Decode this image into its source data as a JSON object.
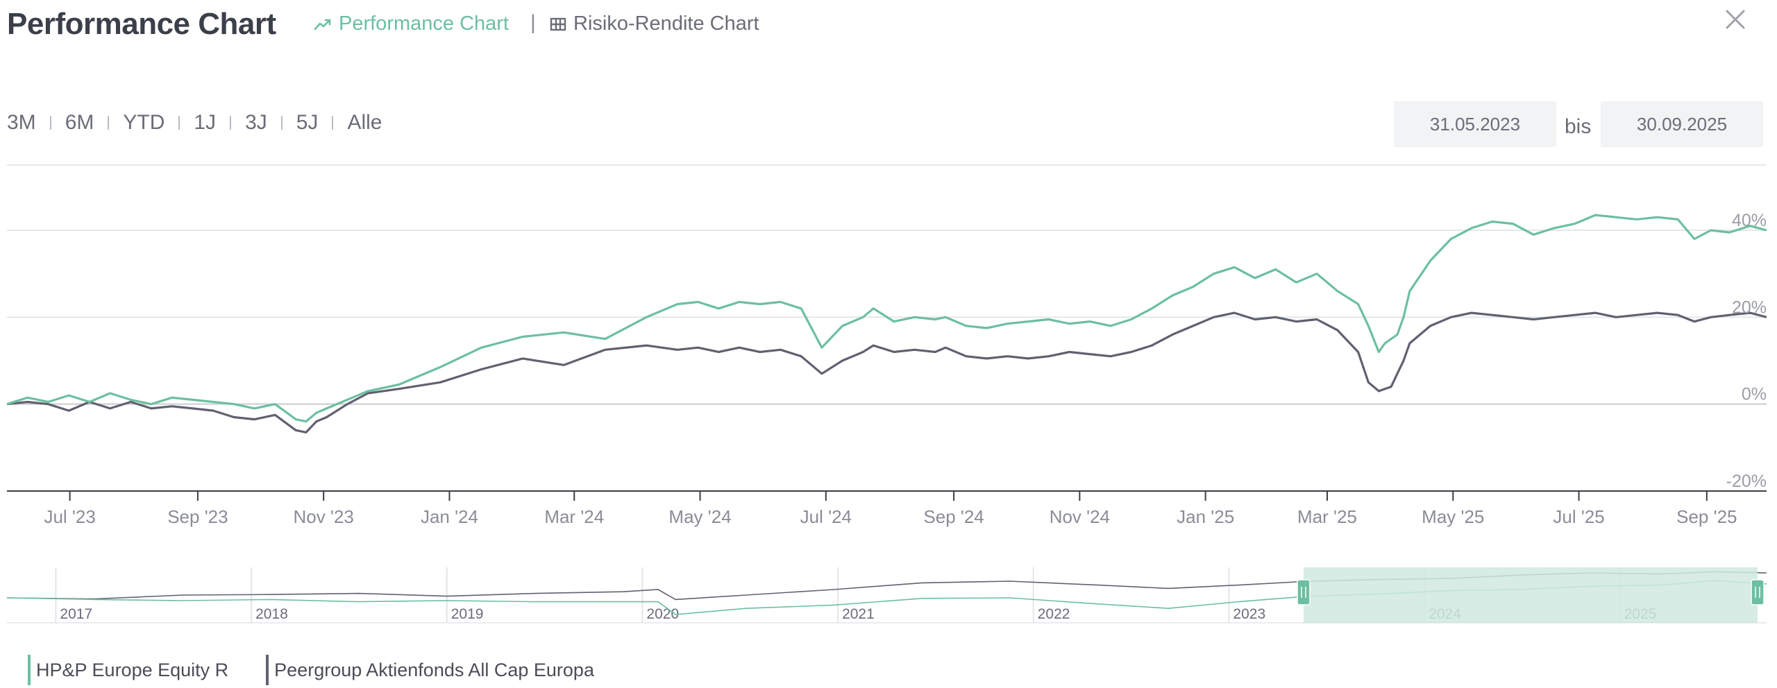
{
  "header": {
    "title": "Performance Chart",
    "tab_performance": "Performance Chart",
    "tab_separator": "|",
    "tab_risk": "Risiko-Rendite Chart"
  },
  "ranges": [
    "3M",
    "6M",
    "YTD",
    "1J",
    "3J",
    "5J",
    "Alle"
  ],
  "date_range": {
    "from": "31.05.2023",
    "connector": "bis",
    "to": "30.09.2025"
  },
  "colors": {
    "fund": "#6cbfa0",
    "peer": "#5f6170",
    "grid": "#e4e6ea",
    "axis": "#3a3d45",
    "navigator_fill": "#cfe9df"
  },
  "legend": {
    "fund": "HP&P Europe Equity R",
    "peer": "Peergroup Aktienfonds All Cap Europa"
  },
  "navigator": {
    "years": [
      "2017",
      "2018",
      "2019",
      "2020",
      "2021",
      "2022",
      "2023",
      "2024",
      "2025"
    ]
  },
  "chart_data": {
    "type": "line",
    "title": "Performance Chart",
    "xlabel": "",
    "ylabel": "",
    "ylim": [
      -20,
      55
    ],
    "yticks": [
      "-20%",
      "0%",
      "20%",
      "40%"
    ],
    "ytick_values": [
      -20,
      0,
      20,
      40
    ],
    "xticks": [
      "Jul '23",
      "Sep '23",
      "Nov '23",
      "Jan '24",
      "Mar '24",
      "May '24",
      "Jul '24",
      "Sep '24",
      "Nov '24",
      "Jan '25",
      "Mar '25",
      "May '25",
      "Jul '25",
      "Sep '25"
    ],
    "xtick_values": [
      30.5,
      92.5,
      153.5,
      214.5,
      275,
      336,
      397,
      459,
      520,
      581,
      640,
      701,
      762,
      824
    ],
    "xlim": [
      0,
      853
    ],
    "series": [
      {
        "name": "HP&P Europe Equity R",
        "color": "#6cbfa0",
        "x": [
          0,
          10,
          20,
          30,
          40,
          50,
          60,
          70,
          80,
          90,
          100,
          110,
          120,
          130,
          140,
          145,
          150,
          155,
          165,
          175,
          190,
          210,
          230,
          250,
          270,
          290,
          310,
          325,
          335,
          345,
          355,
          365,
          375,
          385,
          395,
          405,
          415,
          420,
          430,
          440,
          450,
          455,
          465,
          475,
          485,
          495,
          505,
          515,
          525,
          535,
          545,
          555,
          565,
          575,
          585,
          595,
          605,
          615,
          625,
          635,
          645,
          655,
          660,
          665,
          668,
          671,
          674,
          677,
          680,
          690,
          700,
          710,
          720,
          730,
          740,
          750,
          760,
          770,
          780,
          790,
          800,
          810,
          818,
          826,
          835,
          845,
          853
        ],
        "values": [
          0.0,
          1.5,
          0.5,
          2.0,
          0.5,
          2.5,
          1.0,
          0.0,
          1.5,
          1.0,
          0.5,
          0.0,
          -1.0,
          0.0,
          -3.5,
          -4.0,
          -2.0,
          -1.0,
          1.0,
          3.0,
          4.5,
          8.5,
          13.0,
          15.5,
          16.5,
          15.0,
          20.0,
          23.0,
          23.5,
          22.0,
          23.5,
          23.0,
          23.5,
          22.0,
          13.0,
          18.0,
          20.0,
          22.0,
          19.0,
          20.0,
          19.5,
          20.0,
          18.0,
          17.5,
          18.5,
          19.0,
          19.5,
          18.5,
          19.0,
          18.0,
          19.5,
          22.0,
          25.0,
          27.0,
          30.0,
          31.5,
          29.0,
          31.0,
          28.0,
          30.0,
          26.0,
          23.0,
          18.0,
          12.0,
          14.0,
          15.0,
          16.0,
          20.0,
          26.0,
          33.0,
          38.0,
          40.5,
          42.0,
          41.5,
          39.0,
          40.5,
          41.5,
          43.5,
          43.0,
          42.5,
          43.0,
          42.5,
          38.0,
          40.0,
          39.5,
          41.0,
          40.0
        ]
      },
      {
        "name": "Peergroup Aktienfonds All Cap Europa",
        "color": "#5f6170",
        "x": [
          0,
          10,
          20,
          30,
          40,
          50,
          60,
          70,
          80,
          90,
          100,
          110,
          120,
          130,
          140,
          145,
          150,
          155,
          165,
          175,
          190,
          210,
          230,
          250,
          270,
          290,
          310,
          325,
          335,
          345,
          355,
          365,
          375,
          385,
          395,
          405,
          415,
          420,
          430,
          440,
          450,
          455,
          465,
          475,
          485,
          495,
          505,
          515,
          525,
          535,
          545,
          555,
          565,
          575,
          585,
          595,
          605,
          615,
          625,
          635,
          645,
          655,
          660,
          665,
          668,
          671,
          674,
          677,
          680,
          690,
          700,
          710,
          720,
          730,
          740,
          750,
          760,
          770,
          780,
          790,
          800,
          810,
          818,
          826,
          835,
          845,
          853
        ],
        "values": [
          0.0,
          0.5,
          0.0,
          -1.5,
          0.5,
          -1.0,
          0.5,
          -1.0,
          -0.5,
          -1.0,
          -1.5,
          -3.0,
          -3.5,
          -2.5,
          -6.0,
          -6.5,
          -4.0,
          -3.0,
          0.0,
          2.5,
          3.5,
          5.0,
          8.0,
          10.5,
          9.0,
          12.5,
          13.5,
          12.5,
          13.0,
          12.0,
          13.0,
          12.0,
          12.5,
          11.0,
          7.0,
          10.0,
          12.0,
          13.5,
          12.0,
          12.5,
          12.0,
          13.0,
          11.0,
          10.5,
          11.0,
          10.5,
          11.0,
          12.0,
          11.5,
          11.0,
          12.0,
          13.5,
          16.0,
          18.0,
          20.0,
          21.0,
          19.5,
          20.0,
          19.0,
          19.5,
          17.0,
          12.0,
          5.0,
          3.0,
          3.5,
          4.0,
          7.0,
          10.0,
          14.0,
          18.0,
          20.0,
          21.0,
          20.5,
          20.0,
          19.5,
          20.0,
          20.5,
          21.0,
          20.0,
          20.5,
          21.0,
          20.5,
          19.0,
          20.0,
          20.5,
          21.0,
          20.0
        ]
      }
    ],
    "legend": [
      "HP&P Europe Equity R",
      "Peergroup Aktienfonds All Cap Europa"
    ]
  }
}
